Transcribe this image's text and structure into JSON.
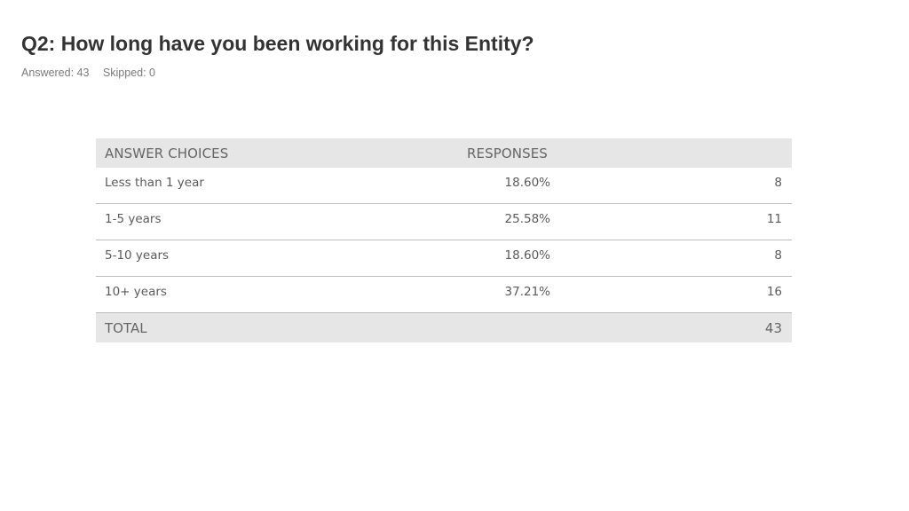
{
  "title": "Q2: How long have you been working for this Entity?",
  "answered": "Answered: 43",
  "skipped": "Skipped: 0",
  "table": {
    "headers": {
      "choices": "ANSWER CHOICES",
      "responses": "RESPONSES"
    },
    "rows": [
      {
        "choice": "Less than 1 year",
        "percent": "18.60%",
        "count": "8"
      },
      {
        "choice": "1-5 years",
        "percent": "25.58%",
        "count": "11"
      },
      {
        "choice": "5-10 years",
        "percent": "18.60%",
        "count": "8"
      },
      {
        "choice": "10+ years",
        "percent": "37.21%",
        "count": "16"
      }
    ],
    "total": {
      "label": "TOTAL",
      "count": "43"
    }
  }
}
